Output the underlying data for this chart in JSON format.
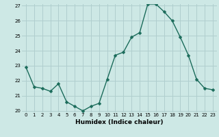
{
  "x": [
    0,
    1,
    2,
    3,
    4,
    5,
    6,
    7,
    8,
    9,
    10,
    11,
    12,
    13,
    14,
    15,
    16,
    17,
    18,
    19,
    20,
    21,
    22,
    23
  ],
  "y": [
    22.9,
    21.6,
    21.5,
    21.3,
    21.8,
    20.6,
    20.3,
    20.0,
    20.3,
    20.5,
    22.1,
    23.7,
    23.9,
    24.9,
    25.2,
    27.1,
    27.1,
    26.6,
    26.0,
    24.9,
    23.7,
    22.1,
    21.5,
    21.4
  ],
  "xlabel": "Humidex (Indice chaleur)",
  "ylim": [
    20,
    27
  ],
  "xlim": [
    -0.5,
    23.5
  ],
  "yticks": [
    20,
    21,
    22,
    23,
    24,
    25,
    26,
    27
  ],
  "xticks": [
    0,
    1,
    2,
    3,
    4,
    5,
    6,
    7,
    8,
    9,
    10,
    11,
    12,
    13,
    14,
    15,
    16,
    17,
    18,
    19,
    20,
    21,
    22,
    23
  ],
  "line_color": "#1a6b5a",
  "marker_color": "#1a6b5a",
  "bg_color": "#cde8e5",
  "grid_color": "#b0cece",
  "linewidth": 1.0,
  "markersize": 2.5,
  "tick_fontsize": 5.0,
  "xlabel_fontsize": 6.5
}
